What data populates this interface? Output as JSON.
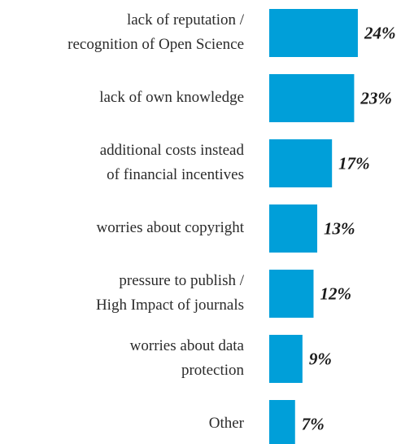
{
  "chart_data": {
    "type": "bar",
    "orientation": "horizontal",
    "color": "#009fd9",
    "categories": [
      [
        "lack of reputation /",
        "recognition of Open Science"
      ],
      [
        "lack of own knowledge"
      ],
      [
        "additional costs instead",
        "of financial incentives"
      ],
      [
        "worries about copyright"
      ],
      [
        "pressure to publish /",
        "High Impact of journals"
      ],
      [
        "worries about data",
        "protection"
      ],
      [
        "Other"
      ]
    ],
    "values": [
      24,
      23,
      17,
      13,
      12,
      9,
      7
    ],
    "value_labels": [
      "24%",
      "23%",
      "17%",
      "13%",
      "12%",
      "9%",
      "7%"
    ]
  }
}
